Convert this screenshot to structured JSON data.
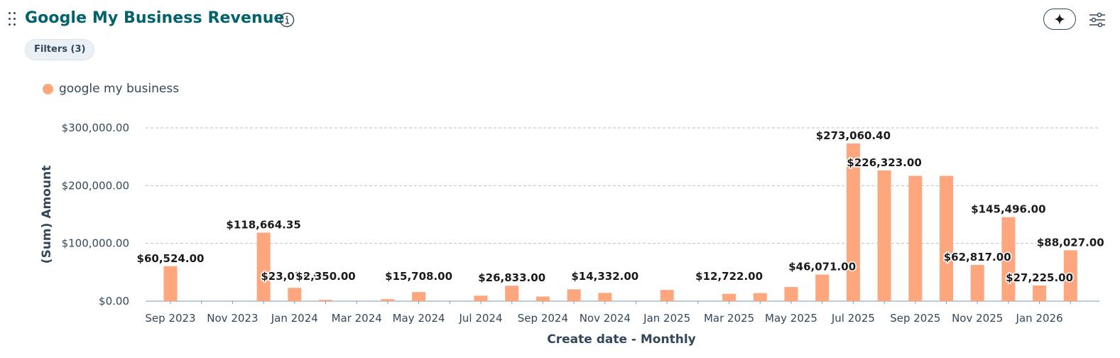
{
  "header": {
    "title": "Google My Business Revenue",
    "filters_label": "Filters (3)"
  },
  "icons": {
    "drag": "drag-handle-icon",
    "info": "info-icon",
    "ai": "sparkle-icon",
    "settings": "sliders-icon"
  },
  "colors": {
    "title": "#00626a",
    "series": "#fea67e"
  },
  "chart_data": {
    "type": "bar",
    "xlabel": "Create date - Monthly",
    "ylabel": "(Sum) Amount",
    "ylim": [
      0,
      300000
    ],
    "y_ticks": [
      "$0.00",
      "$100,000.00",
      "$200,000.00",
      "$300,000.00"
    ],
    "grid": true,
    "legend": "top-left",
    "categories": [
      "Sep 2023",
      "Oct 2023",
      "Nov 2023",
      "Dec 2023",
      "Jan 2024",
      "Feb 2024",
      "Mar 2024",
      "Apr 2024",
      "May 2024",
      "Jun 2024",
      "Jul 2024",
      "Aug 2024",
      "Sep 2024",
      "Oct 2024",
      "Nov 2024",
      "Dec 2024",
      "Jan 2025",
      "Feb 2025",
      "Mar 2025",
      "Apr 2025",
      "May 2025",
      "Jun 2025",
      "Jul 2025",
      "Aug 2025",
      "Sep 2025",
      "Oct 2025",
      "Nov 2025",
      "Dec 2025",
      "Jan 2026",
      "Feb 2026"
    ],
    "x_tick_labels": [
      "Sep 2023",
      "",
      "Nov 2023",
      "",
      "Jan 2024",
      "",
      "Mar 2024",
      "",
      "May 2024",
      "",
      "Jul 2024",
      "",
      "Sep 2024",
      "",
      "Nov 2024",
      "",
      "Jan 2025",
      "",
      "Mar 2025",
      "",
      "May 2025",
      "",
      "Jul 2025",
      "",
      "Sep 2025",
      "",
      "Nov 2025",
      "",
      "Jan 2026",
      ""
    ],
    "series": [
      {
        "name": "google my business",
        "color": "#fea67e",
        "values": [
          60524,
          0,
          0,
          118664.35,
          23053,
          2350,
          0,
          3500,
          15708,
          0,
          9500,
          26833,
          8000,
          20500,
          14332,
          0,
          19500,
          0,
          12722,
          14000,
          24500,
          46071,
          273060.4,
          226323,
          217000,
          217000,
          62817,
          145496,
          27225,
          88027
        ],
        "labels": [
          "$60,524.00",
          "",
          "",
          "$118,664.35",
          "$23,053.00",
          "$2,350.00",
          "",
          "",
          "$15,708.00",
          "",
          "",
          "$26,833.00",
          "",
          "",
          "$14,332.00",
          "",
          "",
          "",
          "$12,722.00",
          "",
          "",
          "$46,071.00",
          "$273,060.40",
          "$226,323.00",
          "",
          "",
          "$62,817.00",
          "$145,496.00",
          "$27,225.00",
          "$88,027.00"
        ]
      }
    ]
  }
}
